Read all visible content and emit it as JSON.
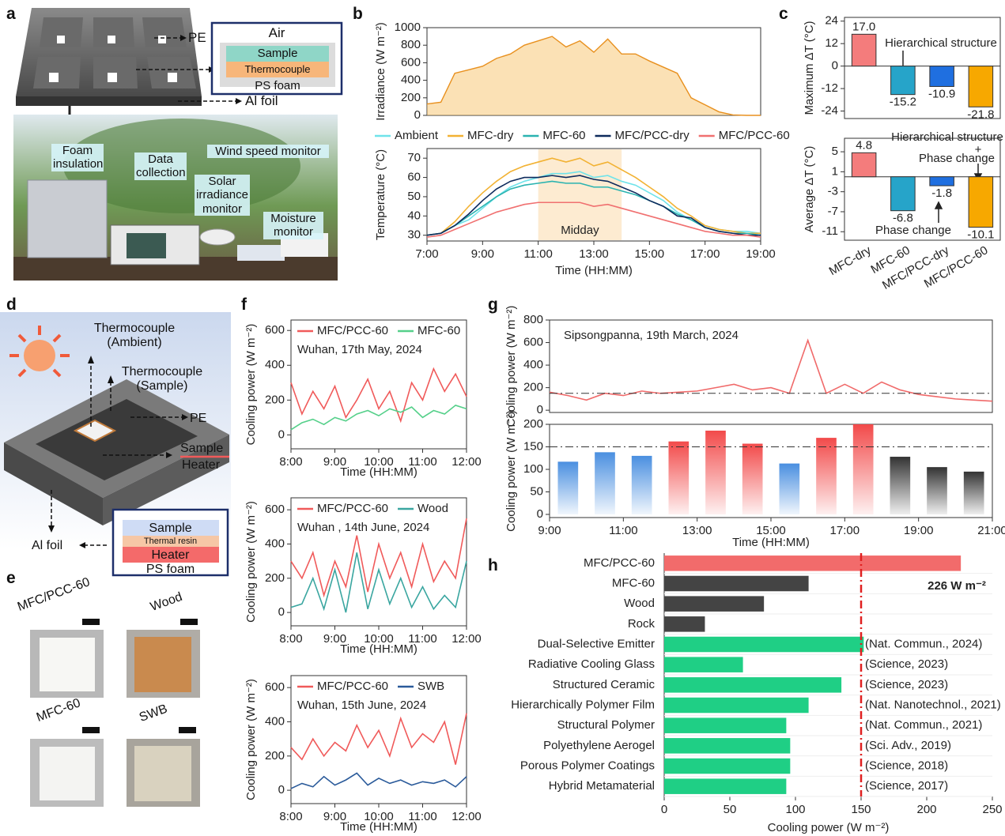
{
  "panel_letters": [
    "a",
    "b",
    "c",
    "d",
    "e",
    "f",
    "g",
    "h"
  ],
  "panel_a": {
    "callouts": [
      "PE",
      "Al foil"
    ],
    "stack": [
      "Air",
      "Sample",
      "Thermocouple",
      "PS foam"
    ],
    "photo_labels": [
      "Foam insulation",
      "Data collection",
      "Wind speed monitor",
      "Solar irradiance monitor",
      "Moisture monitor"
    ]
  },
  "panel_d": {
    "labels": [
      "Thermocouple (Ambient)",
      "Thermocouple (Sample)",
      "PE",
      "Sample",
      "Heater",
      "Al foil"
    ],
    "stack": [
      "Sample",
      "Thermal resin",
      "Heater",
      "PS foam"
    ]
  },
  "panel_e": {
    "samples": [
      "MFC/PCC-60",
      "Wood",
      "MFC-60",
      "SWB"
    ]
  },
  "chart_data": [
    {
      "type": "area",
      "ylabel": "Irradiance (W m⁻²)",
      "color": "#f7c46c",
      "line_color": "#e8901e",
      "x": [
        7,
        7.5,
        8,
        8.5,
        9,
        9.5,
        10,
        10.5,
        11,
        11.5,
        12,
        12.5,
        13,
        13.5,
        14,
        14.5,
        15,
        15.5,
        16,
        16.5,
        17,
        17.5,
        18,
        18.5,
        19
      ],
      "values": [
        130,
        150,
        480,
        520,
        560,
        650,
        700,
        800,
        850,
        900,
        780,
        850,
        720,
        870,
        700,
        700,
        620,
        550,
        480,
        200,
        120,
        40,
        5,
        0,
        0
      ],
      "xlim": [
        7,
        19
      ],
      "ylim": [
        0,
        1000
      ],
      "yticks": [
        0,
        200,
        400,
        600,
        800,
        1000
      ]
    },
    {
      "type": "line",
      "xlabel": "Time (HH:MM)",
      "ylabel": "Temperature (°C)",
      "legend": "top",
      "x": [
        7,
        7.5,
        8,
        8.5,
        9,
        9.5,
        10,
        10.5,
        11,
        11.5,
        12,
        12.5,
        13,
        13.5,
        14,
        14.5,
        15,
        15.5,
        16,
        16.5,
        17,
        17.5,
        18,
        18.5,
        19
      ],
      "series": [
        {
          "name": "Ambient",
          "color": "#6fe3ea",
          "values": [
            30,
            31,
            35,
            38,
            44,
            50,
            55,
            58,
            60,
            62,
            62,
            63,
            60,
            61,
            58,
            56,
            52,
            48,
            42,
            38,
            35,
            33,
            32,
            32,
            31
          ]
        },
        {
          "name": "MFC-dry",
          "color": "#f2b233",
          "values": [
            30,
            31,
            37,
            45,
            52,
            58,
            63,
            66,
            68,
            70,
            68,
            70,
            66,
            68,
            64,
            60,
            55,
            50,
            44,
            40,
            35,
            33,
            32,
            31,
            31
          ]
        },
        {
          "name": "MFC-60",
          "color": "#2ab3b0",
          "values": [
            30,
            31,
            35,
            40,
            45,
            50,
            54,
            56,
            57,
            58,
            57,
            57,
            55,
            55,
            53,
            51,
            48,
            45,
            41,
            38,
            34,
            32,
            31,
            31,
            30
          ]
        },
        {
          "name": "MFC/PCC-dry",
          "color": "#0d2a5c",
          "values": [
            30,
            31,
            35,
            41,
            48,
            54,
            58,
            60,
            60,
            61,
            60,
            61,
            59,
            58,
            55,
            52,
            48,
            45,
            40,
            39,
            34,
            32,
            31,
            30,
            30
          ]
        },
        {
          "name": "MFC/PCC-60",
          "color": "#f07070",
          "values": [
            29,
            30,
            33,
            36,
            39,
            42,
            44,
            46,
            47,
            47,
            47,
            47,
            45,
            46,
            44,
            42,
            40,
            38,
            36,
            34,
            32,
            31,
            30,
            30,
            29
          ]
        }
      ],
      "highlight": {
        "label": "Midday",
        "range": [
          11,
          14
        ],
        "color": "#fde6c6",
        "text_color": "#f29020"
      },
      "xlim": [
        7,
        19
      ],
      "ylim": [
        27,
        75
      ],
      "yticks": [
        30,
        40,
        50,
        60,
        70
      ],
      "xticks": [
        {
          "value": 7,
          "label": "7:00"
        },
        {
          "value": 9,
          "label": "9:00"
        },
        {
          "value": 11,
          "label": "11:00"
        },
        {
          "value": 13,
          "label": "13:00"
        },
        {
          "value": 15,
          "label": "15:00"
        },
        {
          "value": 17,
          "label": "17:00"
        },
        {
          "value": 19,
          "label": "19:00"
        }
      ]
    },
    {
      "type": "bar",
      "ylabel": "Maximum ΔT (°C)",
      "values": [
        17,
        -15.2,
        -10.9,
        -21.8
      ],
      "value_labels": [
        "17.0",
        "-15.2",
        "-10.9",
        "-21.8"
      ],
      "colors": [
        "#f47c7c",
        "#26a4c9",
        "#1f6fe0",
        "#f7a800"
      ],
      "ylim": [
        -28,
        26
      ],
      "yticks": [
        -24,
        -12,
        0,
        12,
        24
      ],
      "annotations": [
        {
          "text": "Hierarchical structure",
          "color": "#1a9c96"
        }
      ]
    },
    {
      "type": "bar",
      "ylabel": "Average ΔT (°C)",
      "categories": [
        "MFC-dry",
        "MFC-60",
        "MFC/PCC-dry",
        "MFC/PCC-60"
      ],
      "values": [
        4.8,
        -6.8,
        -1.8,
        -10.1
      ],
      "value_labels": [
        "4.8",
        "-6.8",
        "-1.8",
        "-10.1"
      ],
      "colors": [
        "#f47c7c",
        "#26a4c9",
        "#1f6fe0",
        "#f7a800"
      ],
      "ylim": [
        -12.7,
        7.7
      ],
      "yticks": [
        -11,
        -7,
        -3,
        1,
        5
      ],
      "annotations": [
        {
          "text": "Hierarchical structure",
          "color": "#f29a1a"
        },
        {
          "text": "+",
          "color": "#222222"
        },
        {
          "text": "Phase change",
          "color": "#f29a1a"
        },
        {
          "text": "Phase change",
          "color": "#1f6fe0"
        }
      ]
    },
    {
      "type": "line",
      "xlabel": "Time (HH:MM)",
      "ylabel": "Cooling power (W m⁻²)",
      "legend": "upper-left",
      "subtitle": "Wuhan, 17th May, 2024",
      "x": [
        8,
        8.25,
        8.5,
        8.75,
        9,
        9.25,
        9.5,
        9.75,
        10,
        10.25,
        10.5,
        10.75,
        11,
        11.25,
        11.5,
        11.75,
        12
      ],
      "series": [
        {
          "name": "MFC/PCC-60",
          "color": "#f05a5a",
          "values": [
            300,
            120,
            250,
            150,
            280,
            100,
            200,
            320,
            150,
            250,
            80,
            300,
            200,
            380,
            250,
            350,
            220
          ]
        },
        {
          "name": "MFC-60",
          "color": "#55d08a",
          "values": [
            30,
            70,
            90,
            60,
            100,
            80,
            120,
            140,
            110,
            150,
            130,
            160,
            100,
            140,
            120,
            170,
            150
          ]
        }
      ],
      "xlim": [
        8,
        12
      ],
      "ylim": [
        -80,
        660
      ],
      "yticks": [
        0,
        200,
        400,
        600
      ],
      "xticks": [
        {
          "value": 8,
          "label": "8:00"
        },
        {
          "value": 9,
          "label": "9:00"
        },
        {
          "value": 10,
          "label": "10:00"
        },
        {
          "value": 11,
          "label": "11:00"
        },
        {
          "value": 12,
          "label": "12:00"
        }
      ]
    },
    {
      "type": "line",
      "xlabel": "Time (HH:MM)",
      "ylabel": "Cooling power (W m⁻²)",
      "legend": "upper-left",
      "subtitle": "Wuhan , 14th June, 2024",
      "x": [
        8,
        8.25,
        8.5,
        8.75,
        9,
        9.25,
        9.5,
        9.75,
        10,
        10.25,
        10.5,
        10.75,
        11,
        11.25,
        11.5,
        11.75,
        12
      ],
      "series": [
        {
          "name": "MFC/PCC-60",
          "color": "#f05a5a",
          "values": [
            300,
            200,
            350,
            100,
            300,
            150,
            450,
            120,
            400,
            200,
            350,
            150,
            400,
            180,
            300,
            200,
            550
          ]
        },
        {
          "name": "Wood",
          "color": "#3aa6a0",
          "values": [
            30,
            50,
            200,
            20,
            250,
            0,
            350,
            20,
            250,
            50,
            200,
            30,
            150,
            20,
            100,
            30,
            300
          ]
        }
      ],
      "xlim": [
        8,
        12
      ],
      "ylim": [
        -78,
        670
      ],
      "yticks": [
        0,
        200,
        400,
        600
      ],
      "xticks": [
        {
          "value": 8,
          "label": "8:00"
        },
        {
          "value": 9,
          "label": "9:00"
        },
        {
          "value": 10,
          "label": "10:00"
        },
        {
          "value": 11,
          "label": "11:00"
        },
        {
          "value": 12,
          "label": "12:00"
        }
      ]
    },
    {
      "type": "line",
      "xlabel": "Time (HH:MM)",
      "ylabel": "Cooling power (W m⁻²)",
      "legend": "upper-left",
      "subtitle": "Wuhan, 15th June, 2024",
      "x": [
        8,
        8.25,
        8.5,
        8.75,
        9,
        9.25,
        9.5,
        9.75,
        10,
        10.25,
        10.5,
        10.75,
        11,
        11.25,
        11.5,
        11.75,
        12
      ],
      "series": [
        {
          "name": "MFC/PCC-60",
          "color": "#f05a5a",
          "values": [
            250,
            180,
            300,
            200,
            280,
            230,
            380,
            250,
            350,
            200,
            420,
            250,
            330,
            280,
            400,
            150,
            450
          ]
        },
        {
          "name": "SWB",
          "color": "#2a5a9a",
          "values": [
            10,
            40,
            20,
            80,
            30,
            60,
            100,
            30,
            70,
            40,
            60,
            30,
            50,
            40,
            60,
            20,
            80
          ]
        }
      ],
      "xlim": [
        8,
        12
      ],
      "ylim": [
        -78,
        670
      ],
      "yticks": [
        0,
        200,
        400,
        600
      ],
      "xticks": [
        {
          "value": 8,
          "label": "8:00"
        },
        {
          "value": 9,
          "label": "9:00"
        },
        {
          "value": 10,
          "label": "10:00"
        },
        {
          "value": 11,
          "label": "11:00"
        },
        {
          "value": 12,
          "label": "12:00"
        }
      ]
    },
    {
      "type": "line",
      "ylabel": "Cooling power (W m⁻²)",
      "subtitle": "Sipsongpanna, 19th March, 2024",
      "color": "#f06a6a",
      "x": [
        9,
        9.5,
        10,
        10.5,
        11,
        11.5,
        12,
        12.5,
        13,
        13.5,
        14,
        14.5,
        15,
        15.5,
        16,
        16.5,
        17,
        17.5,
        18,
        18.5,
        19,
        19.5,
        20,
        20.5,
        21
      ],
      "values": [
        160,
        130,
        90,
        150,
        130,
        170,
        150,
        160,
        170,
        200,
        230,
        180,
        200,
        150,
        620,
        150,
        230,
        150,
        250,
        180,
        140,
        120,
        100,
        90,
        80
      ],
      "reference_line": 150,
      "reference_color": "#333333",
      "xlim": [
        9,
        21
      ],
      "ylim": [
        -20,
        800
      ],
      "yticks": [
        0,
        200,
        400,
        600,
        800
      ]
    },
    {
      "type": "bar",
      "xlabel": "Time (HH:MM)",
      "ylabel": "Cooling power (W m⁻²)",
      "gradient": true,
      "x": [
        9.5,
        10.5,
        11.5,
        12.5,
        13.5,
        14.5,
        15.5,
        16.5,
        17.5,
        18.5,
        19.5,
        20.5
      ],
      "values": [
        117,
        138,
        130,
        162,
        186,
        157,
        113,
        170,
        200,
        128,
        105,
        95
      ],
      "colors": [
        "#4a8fe0",
        "#4a8fe0",
        "#4a8fe0",
        "#f24a4a",
        "#f24a4a",
        "#f24a4a",
        "#4a8fe0",
        "#f24a4a",
        "#f24a4a",
        "#333333",
        "#333333",
        "#333333"
      ],
      "reference_line": 150,
      "reference_color": "#333333",
      "xlim": [
        9,
        21
      ],
      "ylim": [
        -7,
        200
      ],
      "yticks": [
        0,
        50,
        100,
        150,
        200
      ],
      "xticks": [
        {
          "value": 9,
          "label": "9:00"
        },
        {
          "value": 11,
          "label": "11:00"
        },
        {
          "value": 13,
          "label": "13:00"
        },
        {
          "value": 15,
          "label": "15:00"
        },
        {
          "value": 17,
          "label": "17:00"
        },
        {
          "value": 19,
          "label": "19:00"
        },
        {
          "value": 21,
          "label": "21:00"
        }
      ]
    },
    {
      "type": "barh",
      "xlabel": "Cooling power (W m⁻²)",
      "categories": [
        "MFC/PCC-60",
        "MFC-60",
        "Wood",
        "Rock",
        "Dual-Selective Emitter",
        "Radiative Cooling Glass",
        "Structured Ceramic",
        "Hierarchically Polymer Film",
        "Structural Polymer",
        "Polyethylene Aerogel",
        "Porous Polymer Coatings",
        "Hybrid Metamaterial"
      ],
      "values": [
        226,
        110,
        76,
        31,
        152,
        60,
        135,
        110,
        93,
        96,
        96,
        93
      ],
      "colors": [
        "#f26b6b",
        "#444444",
        "#444444",
        "#444444",
        "#1fcf85",
        "#1fcf85",
        "#1fcf85",
        "#1fcf85",
        "#1fcf85",
        "#1fcf85",
        "#1fcf85",
        "#1fcf85"
      ],
      "references": [
        null,
        null,
        null,
        null,
        "(Nat. Commun., 2024)",
        "(Science, 2023)",
        "(Science, 2023)",
        "(Nat. Nanotechnol., 2021)",
        "(Nat. Commun., 2021)",
        "(Sci. Adv., 2019)",
        "(Science, 2018)",
        "(Science, 2017)"
      ],
      "reference_line": 150,
      "reference_color": "#e02020",
      "annotations": [
        {
          "text": "226 W m⁻²",
          "color": "#e02020"
        }
      ],
      "xlim": [
        0,
        250
      ],
      "xticks": [
        0,
        50,
        100,
        150,
        200,
        250
      ]
    }
  ]
}
